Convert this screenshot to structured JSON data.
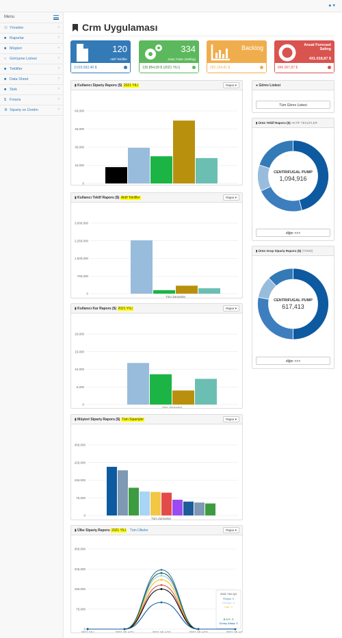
{
  "topbar": {
    "user_caret": "▾"
  },
  "sidebar": {
    "title": "Menu",
    "items": [
      {
        "label": "Yönetim",
        "icon": "sitemap-icon"
      },
      {
        "label": "Raporlar",
        "icon": "folder-icon"
      },
      {
        "label": "Müşteri",
        "icon": "folder-icon"
      },
      {
        "label": "Görüşme Listesi",
        "icon": "comment-icon"
      },
      {
        "label": "Teklifler",
        "icon": "folder-icon"
      },
      {
        "label": "Data Sheet",
        "icon": "folder-icon"
      },
      {
        "label": "Stok",
        "icon": "folder-icon"
      },
      {
        "label": "Finans",
        "icon": "dollar-icon"
      },
      {
        "label": "Sipariş ve Üretim",
        "icon": "gears-icon"
      }
    ]
  },
  "page": {
    "title": "Crm Uygulaması"
  },
  "stats": [
    {
      "value": "120",
      "label": "Aktif Teklifler",
      "footer": "3.015.592,40 $",
      "color": "#337ab7"
    },
    {
      "value": "334",
      "label": "Satış Tutarı (Selling)",
      "footer": "135.854,09 $ (2021 YILI)",
      "color": "#5cb85c"
    },
    {
      "value": "Backlog",
      "label": "",
      "footer": "292.334,81 $",
      "color": "#f0ad4e"
    },
    {
      "value": "Anual Forecast Saling",
      "label": "431.018,87 $",
      "footer": "845.007,87 $",
      "color": "#d9534f"
    }
  ],
  "panels": {
    "orders": {
      "title": "Kullanıcı Sipariş Raporu ($)",
      "tag": "2021 YILI",
      "button": "Rapor"
    },
    "quotes": {
      "title": "Kullanıcı Teklif Raporu ($)",
      "tag": "Aktif Teklifler",
      "button": "Rapor"
    },
    "profit": {
      "title": "Kullanıcı Kar Raporu ($)",
      "tag": "2021 YILI",
      "button": "Rapor"
    },
    "customer": {
      "title": "Müşteri Sipariş Raporu ($)",
      "tag": "Tüm Siparişler",
      "button": "Rapor"
    },
    "country": {
      "title": "Ülke Sipariş Raporu",
      "tag": "2021 YILI",
      "link": "Tüm Ülkeler",
      "button": "Rapor"
    },
    "tasks": {
      "title": "Görev Listesi",
      "button": "Tüm Görev Listesi"
    },
    "product_quote": {
      "title": "Ürün Teklif Raporu ($)",
      "suffix": "AKTİF TEKLİFLER",
      "center_label": "CENTRIFUGAL PUMP",
      "center_value": "1,094,916",
      "button": "diğer >>>"
    },
    "product_order": {
      "title": "Ürün Grup Sipariş Raporu ($)",
      "suffix": "(TÜMÜ)",
      "center_label": "CENTRIFUGAL PUMP",
      "center_value": "617,413",
      "button": "diğer >>>"
    }
  },
  "chart_data": [
    {
      "type": "bar",
      "title": "Kullanıcı Sipariş Raporu ($)",
      "categories": [
        "Tüm Zamanlar"
      ],
      "ylim": [
        0,
        60000
      ],
      "yticks": [
        "0",
        "15,000",
        "30,000",
        "45,000",
        "60,000"
      ],
      "series": [
        {
          "values": [
            13500
          ],
          "color": "#000000"
        },
        {
          "values": [
            29500
          ],
          "color": "#98bcdc"
        },
        {
          "values": [
            22500
          ],
          "color": "#1cb445"
        },
        {
          "values": [
            52000
          ],
          "color": "#b8900e"
        },
        {
          "values": [
            21000
          ],
          "color": "#6bbfb2"
        }
      ]
    },
    {
      "type": "bar",
      "title": "Kullanıcı Teklif Raporu ($)",
      "categories": [
        "Tüm Zamanlar"
      ],
      "ylim": [
        0,
        3000000
      ],
      "yticks": [
        "0",
        "750,000",
        "1,500,000",
        "2,250,000",
        "3,000,000"
      ],
      "series": [
        {
          "values": [
            2270000
          ],
          "color": "#98bcdc"
        },
        {
          "values": [
            150000
          ],
          "color": "#1cb445"
        },
        {
          "values": [
            340000
          ],
          "color": "#b8900e"
        },
        {
          "values": [
            230000
          ],
          "color": "#6bbfb2"
        }
      ]
    },
    {
      "type": "bar",
      "title": "Kullanıcı Kar Raporu ($)",
      "categories": [
        "Tüm Zamanlar"
      ],
      "ylim": [
        0,
        20000
      ],
      "yticks": [
        "0",
        "5,000",
        "10,000",
        "15,000",
        "20,000"
      ],
      "series": [
        {
          "values": [
            11800
          ],
          "color": "#98bcdc"
        },
        {
          "values": [
            8600
          ],
          "color": "#1cb445"
        },
        {
          "values": [
            4000
          ],
          "color": "#b8900e"
        },
        {
          "values": [
            7300
          ],
          "color": "#6bbfb2"
        }
      ]
    },
    {
      "type": "bar",
      "title": "Müşteri Sipariş Raporu ($)",
      "categories": [
        "Tüm Zamanlar"
      ],
      "ylim": [
        0,
        300000
      ],
      "yticks": [
        "0",
        "75,000",
        "150,000",
        "225,000",
        "300,000"
      ],
      "series": [
        {
          "values": [
            207000
          ],
          "color": "#0d5aa0"
        },
        {
          "values": [
            192000
          ],
          "color": "#7f98b3"
        },
        {
          "values": [
            118000
          ],
          "color": "#3d9b42"
        },
        {
          "values": [
            102000
          ],
          "color": "#a8d4f5"
        },
        {
          "values": [
            100000
          ],
          "color": "#f2c744"
        },
        {
          "values": [
            97000
          ],
          "color": "#e34b4b"
        },
        {
          "values": [
            67000
          ],
          "color": "#9c4bf2"
        },
        {
          "values": [
            59000
          ],
          "color": "#1d5c99"
        },
        {
          "values": [
            55000
          ],
          "color": "#7f98b3"
        },
        {
          "values": [
            51000
          ],
          "color": "#3d9b42"
        }
      ]
    },
    {
      "type": "line",
      "title": "Ülke Sipariş Raporu",
      "x": [
        "2021 YILI",
        "2021 YILI-Q1",
        "2021 YILI-Q2",
        "2021 YILI-Q3",
        "2021 YILI-Q4"
      ],
      "ylim": [
        0,
        300000
      ],
      "yticks": [
        "0",
        "75,000",
        "150,000",
        "225,000",
        "300,000"
      ],
      "series": [
        {
          "name": "Rusya",
          "values": [
            0,
            0,
            222000,
            0,
            0
          ],
          "color": "#337ab7"
        },
        {
          "name": "Gezayir",
          "values": [
            0,
            0,
            200000,
            0,
            0
          ],
          "color": "#9ec2e8"
        },
        {
          "name": "İran",
          "values": [
            0,
            0,
            185000,
            0,
            0
          ],
          "color": "#f0c419"
        },
        {
          "name": "",
          "values": [
            0,
            0,
            165000,
            0,
            0
          ],
          "color": "#d9534f"
        },
        {
          "name": "",
          "values": [
            0,
            0,
            150000,
            0,
            0
          ],
          "color": "#000000"
        },
        {
          "name": "B.A.E",
          "values": [
            0,
            0,
            210000,
            0,
            0
          ],
          "color": "#1d6b3e"
        },
        {
          "name": "Güney Afrika",
          "values": [
            0,
            0,
            100000,
            0,
            0
          ],
          "color": "#0d5aa0"
        }
      ],
      "tooltip": {
        "title": "2021 YILI-Q4",
        "rows": [
          "Rusya: 0",
          "Gezayir: 0",
          "İran: 0",
          "",
          "",
          "B.A.E: 0",
          "Güney Afrika: 0"
        ]
      }
    },
    {
      "type": "pie",
      "title": "Ürün Teklif Raporu ($)",
      "values": [
        46,
        22,
        12,
        20
      ],
      "colors": [
        "#0d5aa0",
        "#3d7ebf",
        "#98bcdc",
        "#337ab7"
      ]
    },
    {
      "type": "pie",
      "title": "Ürün Grup Sipariş Raporu ($)",
      "values": [
        50,
        28,
        10,
        12
      ],
      "colors": [
        "#0d5aa0",
        "#3d7ebf",
        "#98bcdc",
        "#337ab7"
      ]
    }
  ]
}
